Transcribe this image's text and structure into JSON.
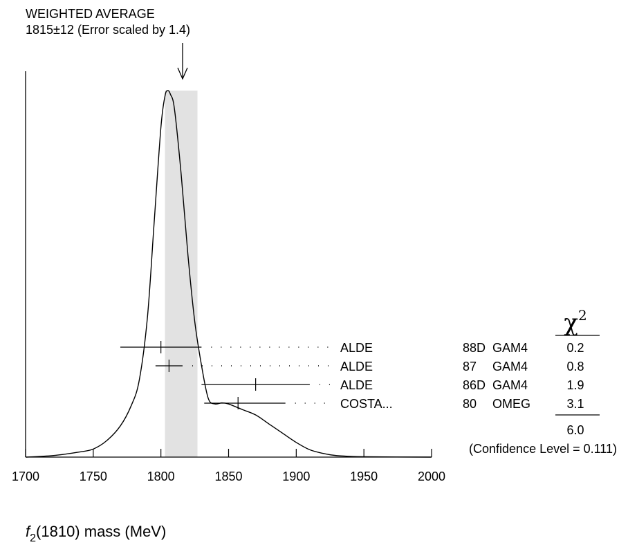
{
  "chart_data": {
    "type": "ideogram",
    "title": "WEIGHTED AVERAGE",
    "subtitle": "1815±12 (Error scaled by 1.4)",
    "average": {
      "value": 1815,
      "error": 12
    },
    "xlabel_main": "f",
    "xlabel_sub": "2",
    "xlabel_rest": "(1810) mass (MeV)",
    "xlim": [
      1700,
      2000
    ],
    "x_ticks": [
      1700,
      1750,
      1800,
      1850,
      1900,
      1950,
      2000
    ],
    "x_tick_labels": [
      "1700",
      "1750",
      "1800",
      "1850",
      "1900",
      "1950",
      "2000"
    ],
    "ideogram_curve": [
      [
        1700,
        0.0
      ],
      [
        1720,
        0.004
      ],
      [
        1740,
        0.014
      ],
      [
        1750,
        0.022
      ],
      [
        1760,
        0.045
      ],
      [
        1770,
        0.085
      ],
      [
        1778,
        0.14
      ],
      [
        1784,
        0.21
      ],
      [
        1790,
        0.38
      ],
      [
        1795,
        0.64
      ],
      [
        1800,
        0.9
      ],
      [
        1803,
        0.985
      ],
      [
        1805,
        1.0
      ],
      [
        1807,
        0.99
      ],
      [
        1810,
        0.95
      ],
      [
        1815,
        0.77
      ],
      [
        1820,
        0.55
      ],
      [
        1825,
        0.37
      ],
      [
        1830,
        0.25
      ],
      [
        1835,
        0.16
      ],
      [
        1840,
        0.145
      ],
      [
        1845,
        0.148
      ],
      [
        1850,
        0.145
      ],
      [
        1860,
        0.13
      ],
      [
        1870,
        0.115
      ],
      [
        1880,
        0.09
      ],
      [
        1890,
        0.065
      ],
      [
        1900,
        0.04
      ],
      [
        1910,
        0.02
      ],
      [
        1920,
        0.01
      ],
      [
        1930,
        0.004
      ],
      [
        1950,
        0.001
      ],
      [
        2000,
        0.0
      ]
    ],
    "measurements": [
      {
        "value": 1800,
        "low": 1770,
        "high": 1830,
        "name": "ALDE",
        "year": "88D",
        "experiment": "GAM4",
        "chi2": "0.2"
      },
      {
        "value": 1806,
        "low": 1796,
        "high": 1816,
        "name": "ALDE",
        "year": "87",
        "experiment": "GAM4",
        "chi2": "0.8"
      },
      {
        "value": 1870,
        "low": 1830,
        "high": 1910,
        "name": "ALDE",
        "year": "86D",
        "experiment": "GAM4",
        "chi2": "1.9"
      },
      {
        "value": 1857,
        "low": 1832,
        "high": 1892,
        "name": "COSTA...",
        "year": "80",
        "experiment": "OMEG",
        "chi2": "3.1"
      }
    ],
    "chi2_header": "χ",
    "chi2_sup": "2",
    "chi2_total": "6.0",
    "confidence_text": "(Confidence Level = 0.111)",
    "band_color": "#e2e2e2"
  }
}
